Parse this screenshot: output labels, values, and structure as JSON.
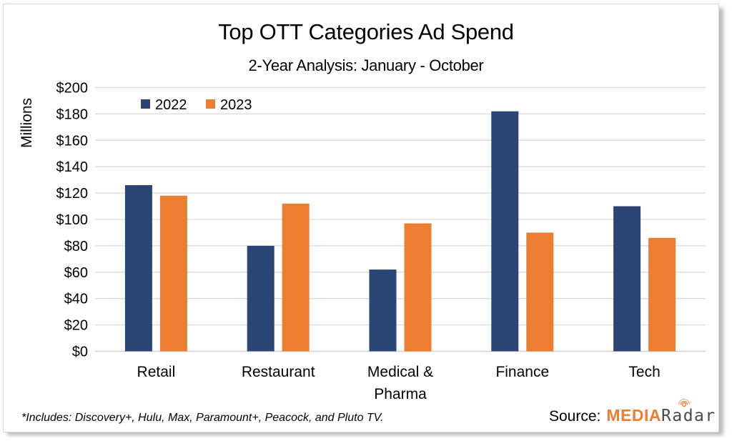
{
  "chart_data": {
    "type": "bar",
    "title": "Top OTT Categories Ad Spend",
    "subtitle": "2-Year Analysis: January - October",
    "xlabel": "",
    "ylabel": "Millions",
    "ylim": [
      0,
      200
    ],
    "ytick_step": 20,
    "ytick_prefix": "$",
    "yticks": [
      "$0",
      "$20",
      "$40",
      "$60",
      "$80",
      "$100",
      "$120",
      "$140",
      "$160",
      "$180",
      "$200"
    ],
    "grid": true,
    "legend_position": "top-left",
    "categories": [
      "Retail",
      "Restaurant",
      "Medical & Pharma",
      "Finance",
      "Tech"
    ],
    "category_lines": [
      [
        "Retail"
      ],
      [
        "Restaurant"
      ],
      [
        "Medical &",
        "Pharma"
      ],
      [
        "Finance"
      ],
      [
        "Tech"
      ]
    ],
    "series": [
      {
        "name": "2022",
        "color": "#2b4574",
        "values": [
          126,
          80,
          62,
          182,
          110
        ]
      },
      {
        "name": "2023",
        "color": "#ed7d31",
        "values": [
          118,
          112,
          97,
          90,
          86
        ]
      }
    ]
  },
  "footnote": "*Includes: Discovery+, Hulu, Max, Paramount+, Peacock, and Pluto TV.",
  "source": {
    "label": "Source:",
    "logo_part1": "MEDIA",
    "logo_part2": "Radar",
    "logo_icon": "radar-signal-icon"
  }
}
